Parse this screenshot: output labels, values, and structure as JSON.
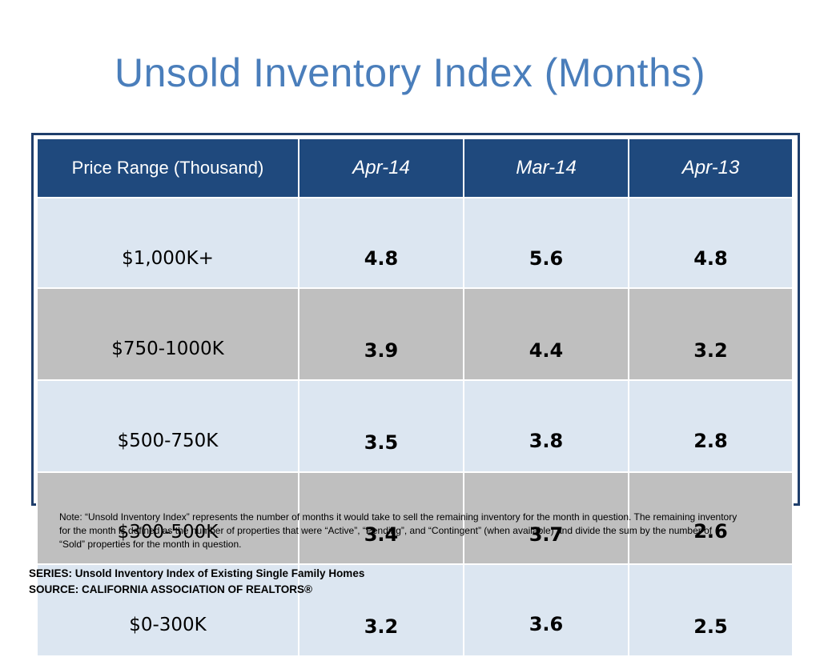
{
  "title": "Unsold Inventory Index (Months)",
  "chart_data": {
    "type": "table",
    "columns": [
      "Price Range (Thousand)",
      "Apr-14",
      "Mar-14",
      "Apr-13"
    ],
    "rows": [
      {
        "label": "$1,000K+",
        "values": [
          "4.8",
          "5.6",
          "4.8"
        ]
      },
      {
        "label": "$750-1000K",
        "values": [
          "3.9",
          "4.4",
          "3.2"
        ]
      },
      {
        "label": "$500-750K",
        "values": [
          "3.5",
          "3.8",
          "2.8"
        ]
      },
      {
        "label": "$300-500K",
        "values": [
          "3.4",
          "3.7",
          "2.6"
        ]
      },
      {
        "label": "$0-300K",
        "values": [
          "3.2",
          "3.6",
          "2.5"
        ]
      }
    ]
  },
  "note": "Note: “Unsold Inventory Index” represents the number of months it would take to sell the remaining inventory for the month in question. The remaining inventory for the month is defined as the number of properties that were “Active”, “Pending”, and “Contingent” (when available) and divide the sum by the number of “Sold” properties for the month in question.",
  "series": "SERIES: Unsold Inventory Index of Existing Single Family Homes",
  "source": "SOURCE:  CALIFORNIA ASSOCIATION OF REALTORS®",
  "colors": {
    "title": "#4a7ebb",
    "header_bg": "#1f497d",
    "row_light": "#dce6f1",
    "row_dark": "#bfbfbf",
    "frame": "#1f3e6b"
  }
}
